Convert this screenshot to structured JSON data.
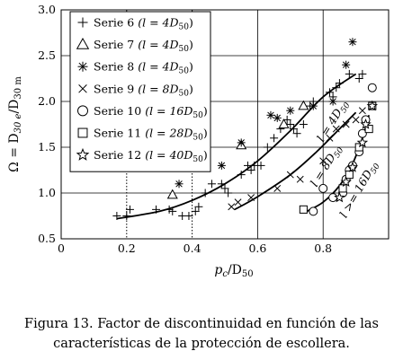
{
  "figure": {
    "caption_line1": "Figura 13. Factor de discontinuidad en función de las",
    "caption_line2": "características de la protección de escollera."
  },
  "chart_data": {
    "type": "scatter",
    "xlabel": {
      "main": "p",
      "sub": "c",
      "rest": "/D",
      "sub2": "50"
    },
    "ylabel": {
      "main": "Ω = D",
      "sub": "30 e",
      "rest": "/D",
      "sub2": "30 m"
    },
    "xlim": [
      0,
      1.0
    ],
    "ylim": [
      0.5,
      3.0
    ],
    "xticks": [
      0,
      0.2,
      0.4,
      0.6,
      0.8
    ],
    "xtick_labels": [
      "0",
      "0.2",
      "0.4",
      "0.6",
      "0.8"
    ],
    "yticks": [
      0.5,
      1.0,
      1.5,
      2.0,
      2.5,
      3.0
    ],
    "ytick_labels": [
      "0.5",
      "1.0",
      "1.5",
      "2.0",
      "2.5",
      "3.0"
    ],
    "grid": true,
    "legend_position": "top-left",
    "series": [
      {
        "name": "Serie 6",
        "param": "(l = 4D",
        "param_sub": "50",
        "marker": "plus",
        "points": [
          [
            0.17,
            0.75
          ],
          [
            0.2,
            0.75
          ],
          [
            0.21,
            0.82
          ],
          [
            0.29,
            0.82
          ],
          [
            0.33,
            0.82
          ],
          [
            0.34,
            0.8
          ],
          [
            0.37,
            0.75
          ],
          [
            0.39,
            0.75
          ],
          [
            0.41,
            0.8
          ],
          [
            0.42,
            0.85
          ],
          [
            0.44,
            1.0
          ],
          [
            0.46,
            1.1
          ],
          [
            0.49,
            1.1
          ],
          [
            0.5,
            1.05
          ],
          [
            0.51,
            1.0
          ],
          [
            0.55,
            1.2
          ],
          [
            0.57,
            1.3
          ],
          [
            0.58,
            1.25
          ],
          [
            0.59,
            1.3
          ],
          [
            0.61,
            1.3
          ],
          [
            0.63,
            1.5
          ],
          [
            0.65,
            1.6
          ],
          [
            0.67,
            1.7
          ],
          [
            0.69,
            1.8
          ],
          [
            0.7,
            1.75
          ],
          [
            0.71,
            1.7
          ],
          [
            0.72,
            1.65
          ],
          [
            0.74,
            1.75
          ],
          [
            0.76,
            1.95
          ],
          [
            0.77,
            2.0
          ],
          [
            0.82,
            2.1
          ],
          [
            0.83,
            2.05
          ],
          [
            0.84,
            2.15
          ],
          [
            0.85,
            2.2
          ],
          [
            0.88,
            2.3
          ],
          [
            0.91,
            2.25
          ],
          [
            0.92,
            2.3
          ]
        ]
      },
      {
        "name": "Serie 7",
        "param": "(l = 4D",
        "param_sub": "50",
        "marker": "triangle",
        "points": [
          [
            0.34,
            0.98
          ],
          [
            0.55,
            1.52
          ],
          [
            0.68,
            1.75
          ],
          [
            0.74,
            1.95
          ]
        ]
      },
      {
        "name": "Serie 8",
        "param": "(l = 4D",
        "param_sub": "50",
        "marker": "asterisk",
        "points": [
          [
            0.36,
            1.1
          ],
          [
            0.49,
            1.3
          ],
          [
            0.55,
            1.55
          ],
          [
            0.64,
            1.85
          ],
          [
            0.66,
            1.82
          ],
          [
            0.7,
            1.9
          ],
          [
            0.77,
            1.95
          ],
          [
            0.83,
            2.0
          ],
          [
            0.87,
            2.4
          ],
          [
            0.89,
            2.65
          ]
        ]
      },
      {
        "name": "Serie 9",
        "param": "(l = 8D",
        "param_sub": "50",
        "marker": "x",
        "points": [
          [
            0.52,
            0.85
          ],
          [
            0.54,
            0.9
          ],
          [
            0.58,
            0.95
          ],
          [
            0.66,
            1.05
          ],
          [
            0.7,
            1.2
          ],
          [
            0.73,
            1.15
          ],
          [
            0.8,
            1.35
          ],
          [
            0.82,
            1.6
          ],
          [
            0.84,
            1.7
          ],
          [
            0.87,
            1.75
          ],
          [
            0.9,
            1.8
          ],
          [
            0.92,
            1.9
          ]
        ]
      },
      {
        "name": "Serie 10",
        "param": "(l = 16D",
        "param_sub": "50",
        "marker": "circle",
        "points": [
          [
            0.77,
            0.8
          ],
          [
            0.8,
            1.05
          ],
          [
            0.83,
            0.95
          ],
          [
            0.86,
            1.0
          ],
          [
            0.87,
            1.15
          ],
          [
            0.88,
            1.25
          ],
          [
            0.89,
            1.3
          ],
          [
            0.91,
            1.45
          ],
          [
            0.92,
            1.65
          ],
          [
            0.93,
            1.8
          ],
          [
            0.95,
            2.15
          ]
        ]
      },
      {
        "name": "Serie 11",
        "param": "(l = 28D",
        "param_sub": "50",
        "marker": "square",
        "points": [
          [
            0.74,
            0.82
          ],
          [
            0.86,
            1.05
          ],
          [
            0.88,
            1.2
          ],
          [
            0.91,
            1.5
          ],
          [
            0.94,
            1.7
          ],
          [
            0.95,
            1.95
          ]
        ]
      },
      {
        "name": "Serie 12",
        "param": "(l = 40D",
        "param_sub": "50",
        "marker": "star",
        "points": [
          [
            0.85,
            0.95
          ],
          [
            0.87,
            1.12
          ],
          [
            0.89,
            1.28
          ],
          [
            0.92,
            1.55
          ],
          [
            0.93,
            1.75
          ],
          [
            0.95,
            1.95
          ]
        ]
      }
    ],
    "curves": [
      {
        "label": "l = 4D",
        "label_sub": "50",
        "points": [
          [
            0.17,
            0.72
          ],
          [
            0.3,
            0.8
          ],
          [
            0.4,
            0.92
          ],
          [
            0.5,
            1.1
          ],
          [
            0.6,
            1.35
          ],
          [
            0.7,
            1.68
          ],
          [
            0.8,
            2.05
          ],
          [
            0.9,
            2.3
          ]
        ]
      },
      {
        "label": "l = 8D",
        "label_sub": "50",
        "points": [
          [
            0.53,
            0.82
          ],
          [
            0.6,
            0.96
          ],
          [
            0.7,
            1.2
          ],
          [
            0.78,
            1.45
          ],
          [
            0.85,
            1.7
          ],
          [
            0.9,
            1.88
          ]
        ]
      },
      {
        "label": "l >= 16D",
        "label_sub": "50",
        "points": [
          [
            0.75,
            0.8
          ],
          [
            0.8,
            0.9
          ],
          [
            0.85,
            1.08
          ],
          [
            0.89,
            1.32
          ],
          [
            0.92,
            1.6
          ],
          [
            0.94,
            1.85
          ]
        ]
      }
    ]
  }
}
